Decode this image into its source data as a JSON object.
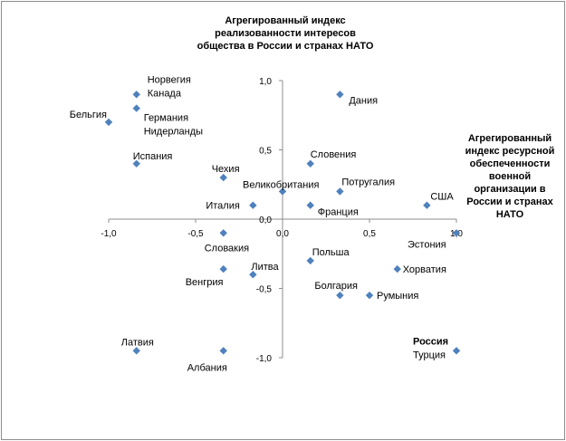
{
  "chart_data": {
    "type": "scatter",
    "title": "",
    "ylabel_lines": [
      "Агрегированный индекс",
      "реализованности интересов",
      "общества в России и странах НАТО"
    ],
    "xlabel_lines": [
      "Агрегированный",
      "индекс ресурсной",
      "обеспеченности",
      "военной",
      "организации в",
      "России и странах",
      "НАТО"
    ],
    "xlim": [
      -1.0,
      1.0
    ],
    "ylim": [
      -1.0,
      1.0
    ],
    "x_ticks": [
      "-1,0",
      "-0,5",
      "0,0",
      "0,5",
      "1,0"
    ],
    "y_ticks": [
      "1,0",
      "0,5",
      "0,0",
      "-0,5",
      "-1,0"
    ],
    "marker_color": "#4f81bd",
    "grid": false,
    "legend": "none",
    "points": [
      {
        "name": "Норвегия",
        "x": -0.84,
        "y": 0.9
      },
      {
        "name": "Канада",
        "x": -0.84,
        "y": 0.9
      },
      {
        "name": "Германия",
        "x": -0.84,
        "y": 0.8
      },
      {
        "name": "Нидерланды",
        "x": -0.84,
        "y": 0.8
      },
      {
        "name": "Бельгия",
        "x": -1.0,
        "y": 0.7
      },
      {
        "name": "Испания",
        "x": -0.84,
        "y": 0.4
      },
      {
        "name": "Чехия",
        "x": -0.34,
        "y": 0.3
      },
      {
        "name": "Италия",
        "x": -0.17,
        "y": 0.1
      },
      {
        "name": "Словакия",
        "x": -0.34,
        "y": -0.1
      },
      {
        "name": "Литва",
        "x": -0.17,
        "y": -0.4
      },
      {
        "name": "Венгрия",
        "x": -0.34,
        "y": -0.36
      },
      {
        "name": "Латвия",
        "x": -0.84,
        "y": -0.95
      },
      {
        "name": "Албания",
        "x": -0.34,
        "y": -0.95
      },
      {
        "name": "Дания",
        "x": 0.33,
        "y": 0.9
      },
      {
        "name": "Словения",
        "x": 0.16,
        "y": 0.4
      },
      {
        "name": "Великобритания",
        "x": 0.0,
        "y": 0.2
      },
      {
        "name": "Потругалия",
        "x": 0.33,
        "y": 0.2
      },
      {
        "name": "Франция",
        "x": 0.16,
        "y": 0.1
      },
      {
        "name": "США",
        "x": 0.83,
        "y": 0.1
      },
      {
        "name": "Эстония",
        "x": 1.0,
        "y": -0.1
      },
      {
        "name": "Польша",
        "x": 0.16,
        "y": -0.3
      },
      {
        "name": "Хорватия",
        "x": 0.66,
        "y": -0.36
      },
      {
        "name": "Болгария",
        "x": 0.33,
        "y": -0.55
      },
      {
        "name": "Румыния",
        "x": 0.5,
        "y": -0.55
      },
      {
        "name": "Россия",
        "x": 1.0,
        "y": -0.95
      },
      {
        "name": "Турция",
        "x": 1.0,
        "y": -0.95
      }
    ]
  }
}
